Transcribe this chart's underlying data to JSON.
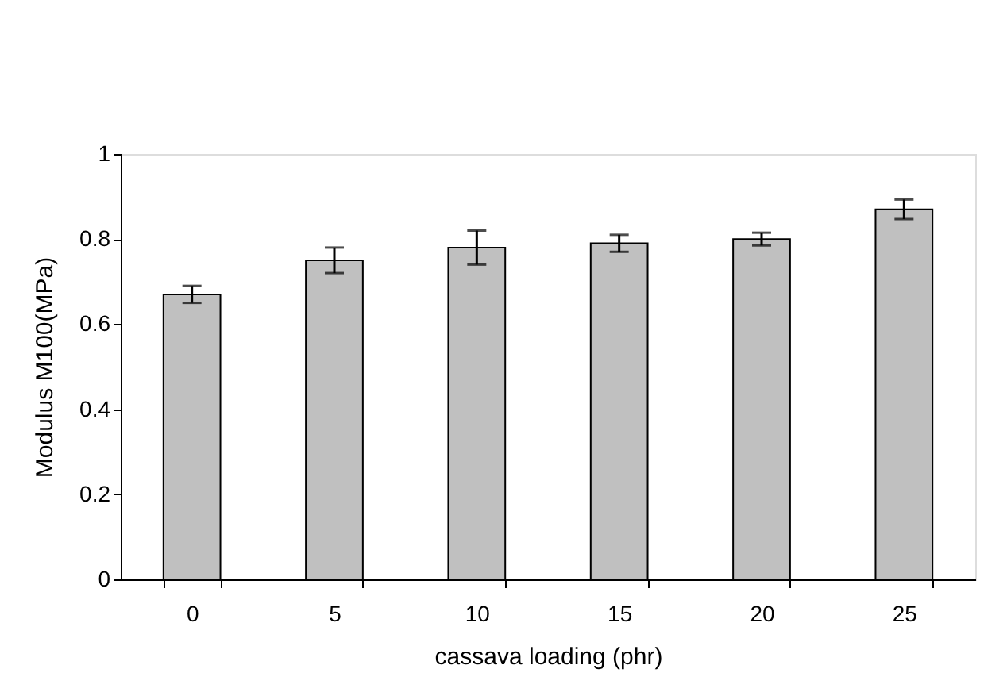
{
  "chart_data": {
    "type": "bar",
    "xlabel": "cassava loading (phr)",
    "ylabel": "Modulus M100(MPa)",
    "categories": [
      "0",
      "5",
      "10",
      "15",
      "20",
      "25"
    ],
    "values": [
      0.67,
      0.75,
      0.78,
      0.79,
      0.8,
      0.87
    ],
    "errors": [
      0.02,
      0.03,
      0.04,
      0.02,
      0.015,
      0.023
    ],
    "color": "#c0c0c0",
    "ylim": [
      0,
      1
    ],
    "yticks": [
      0,
      0.2,
      0.4,
      0.6,
      0.8,
      1
    ],
    "grid": false
  }
}
